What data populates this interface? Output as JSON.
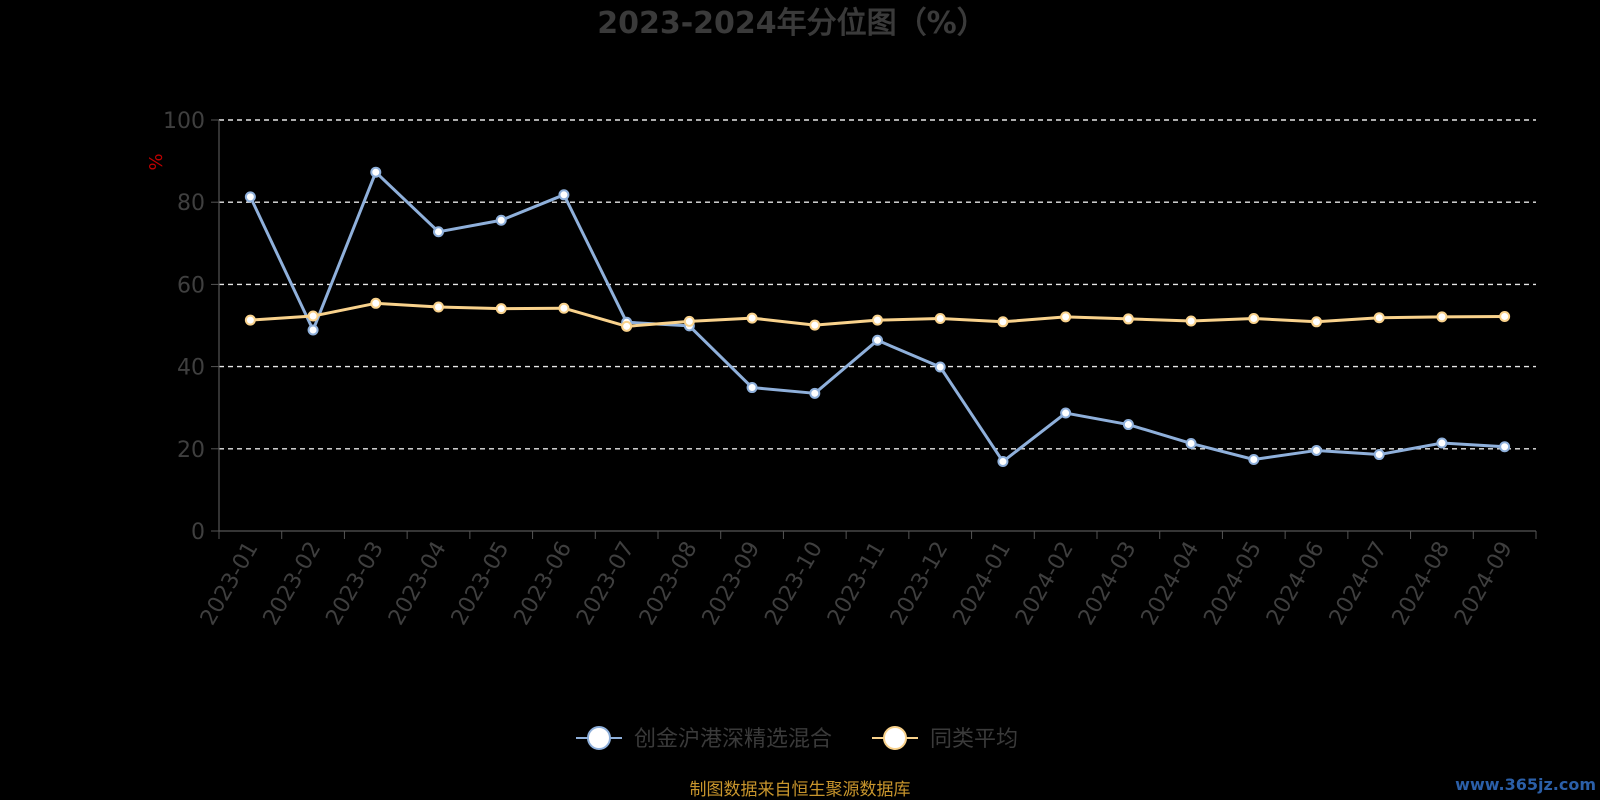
{
  "chart_data": {
    "type": "line",
    "title": "2023-2024年分位图（%）",
    "ylabel": "%",
    "ylim": [
      0,
      100
    ],
    "yticks": [
      "0",
      "20",
      "40",
      "60",
      "80",
      "100"
    ],
    "grid": true,
    "legend_position": "bottom",
    "categories": [
      "2023-01",
      "2023-02",
      "2023-03",
      "2023-04",
      "2023-05",
      "2023-06",
      "2023-07",
      "2023-08",
      "2023-09",
      "2023-10",
      "2023-11",
      "2023-12",
      "2024-01",
      "2024-02",
      "2024-03",
      "2024-04",
      "2024-05",
      "2024-06",
      "2024-07",
      "2024-08",
      "2024-09"
    ],
    "series": [
      {
        "name": "创金沪港深精选混合",
        "color": "#8fb0db",
        "values": [
          81.3,
          48.9,
          87.3,
          72.8,
          75.6,
          81.8,
          50.8,
          49.9,
          34.9,
          33.5,
          46.4,
          39.9,
          16.9,
          28.7,
          25.9,
          21.3,
          17.4,
          19.6,
          18.6,
          21.4,
          20.5
        ]
      },
      {
        "name": "同类平均",
        "color": "#f9d28c",
        "values": [
          51.3,
          52.3,
          55.4,
          54.5,
          54.1,
          54.2,
          49.8,
          51.0,
          51.8,
          50.1,
          51.3,
          51.7,
          50.9,
          52.1,
          51.6,
          51.1,
          51.7,
          50.9,
          51.9,
          52.1,
          52.2
        ]
      }
    ]
  },
  "footer": {
    "source": "制图数据来自恒生聚源数据库",
    "watermark": "www.365jz.com"
  }
}
